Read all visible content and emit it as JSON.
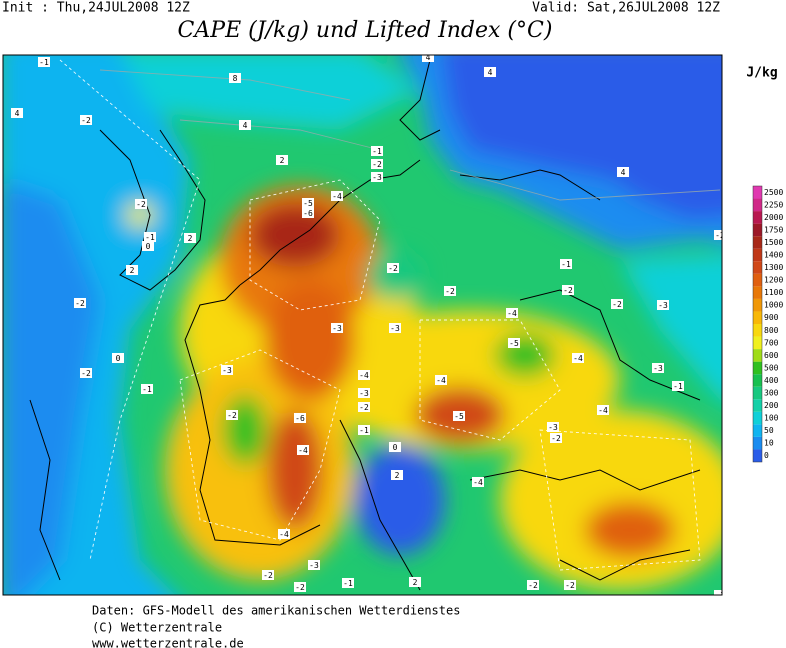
{
  "header": {
    "init": "Init : Thu,24JUL2008 12Z",
    "valid": "Valid: Sat,26JUL2008 12Z",
    "title": "CAPE (J/kg) und Lifted Index (°C)"
  },
  "colorbar": {
    "unit": "J/kg",
    "levels": [
      {
        "value": 0,
        "color": "#2a5ce8"
      },
      {
        "value": 10,
        "color": "#1a8cf0"
      },
      {
        "value": 50,
        "color": "#10b4f0"
      },
      {
        "value": 100,
        "color": "#10d0d8"
      },
      {
        "value": 200,
        "color": "#14d0a8"
      },
      {
        "value": 300,
        "color": "#18c880"
      },
      {
        "value": 400,
        "color": "#18c050"
      },
      {
        "value": 500,
        "color": "#30c020"
      },
      {
        "value": 600,
        "color": "#a0dc18"
      },
      {
        "value": 700,
        "color": "#f0f020"
      },
      {
        "value": 800,
        "color": "#f8d810"
      },
      {
        "value": 900,
        "color": "#f8b808"
      },
      {
        "value": 1000,
        "color": "#f09808"
      },
      {
        "value": 1100,
        "color": "#e87808"
      },
      {
        "value": 1200,
        "color": "#e06010"
      },
      {
        "value": 1300,
        "color": "#d04818"
      },
      {
        "value": 1400,
        "color": "#c03818"
      },
      {
        "value": 1500,
        "color": "#a82818"
      },
      {
        "value": 1750,
        "color": "#9c1828"
      },
      {
        "value": 2000,
        "color": "#b81850"
      },
      {
        "value": 2250,
        "color": "#d02888"
      },
      {
        "value": 2500,
        "color": "#e038b0"
      }
    ]
  },
  "map_labels": [
    "-1",
    "4",
    "-2",
    "8",
    "4",
    "2",
    "4",
    "4",
    "4",
    "2",
    "-2",
    "-1",
    "0",
    "2",
    "-2",
    "-1",
    "-3",
    "-5",
    "-6",
    "-4",
    "-2",
    "-2",
    "-3",
    "-3",
    "-2",
    "-1",
    "-2",
    "-3",
    "-4",
    "-5",
    "-3",
    "-4",
    "-4",
    "-3",
    "-2",
    "-1",
    "-5",
    "-6",
    "-4",
    "-2",
    "0",
    "2",
    "-4",
    "-3",
    "-2",
    "-4",
    "-2",
    "-3",
    "-2",
    "-4",
    "-1",
    "-2",
    "0",
    "-1",
    "-2",
    "-2",
    "-3",
    "-4",
    "-1",
    "-2",
    "-2",
    "2",
    "-1"
  ],
  "footer": [
    "Daten: GFS-Modell des amerikanischen Wetterdienstes",
    "(C) Wetterzentrale",
    "www.wetterzentrale.de"
  ]
}
